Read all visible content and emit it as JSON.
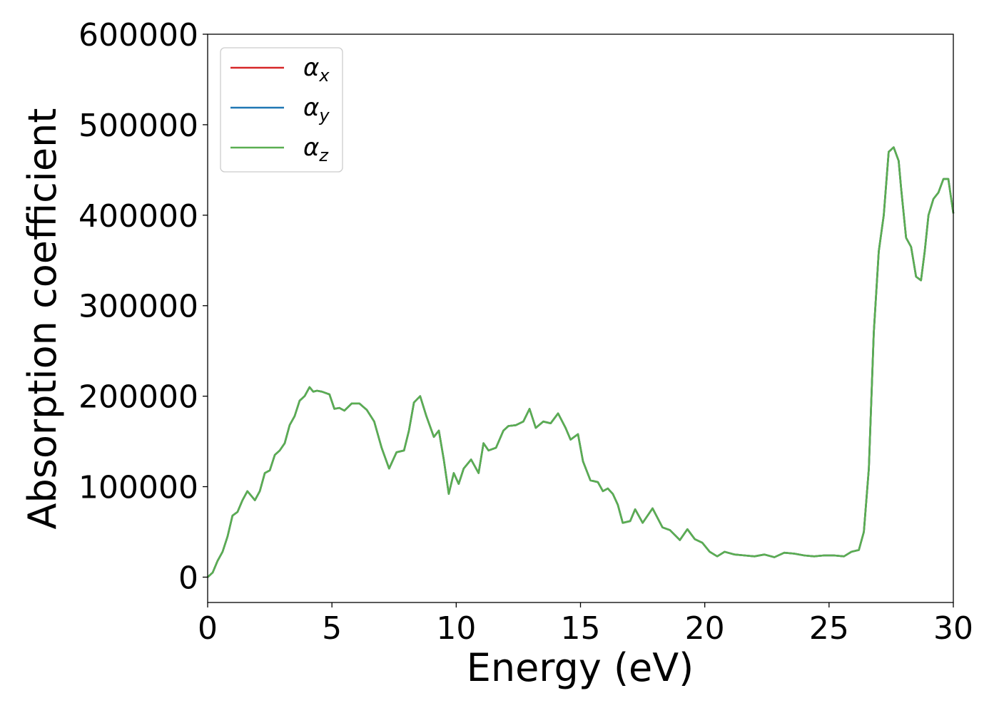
{
  "chart_data": {
    "type": "line",
    "title": "",
    "xlabel": "Energy (eV)",
    "ylabel": "Absorption coefficient",
    "xlim": [
      0,
      30
    ],
    "ylim": [
      -28000,
      600000
    ],
    "xticks": [
      0,
      5,
      10,
      15,
      20,
      25,
      30
    ],
    "yticks": [
      0,
      100000,
      200000,
      300000,
      400000,
      500000,
      600000
    ],
    "grid": false,
    "legend_position": "top-left",
    "series": [
      {
        "name": "α_x",
        "legend_symbol": "α",
        "legend_sub": "x",
        "color": "#d62728",
        "x": [
          0,
          0.2,
          0.4,
          0.6,
          0.8,
          1.0,
          1.2,
          1.4,
          1.6,
          1.75,
          1.9,
          2.1,
          2.3,
          2.5,
          2.7,
          2.9,
          3.1,
          3.3,
          3.5,
          3.7,
          3.9,
          4.1,
          4.25,
          4.4,
          4.6,
          4.9,
          5.1,
          5.3,
          5.5,
          5.8,
          6.1,
          6.4,
          6.7,
          7.0,
          7.3,
          7.6,
          7.9,
          8.1,
          8.3,
          8.55,
          8.8,
          9.1,
          9.3,
          9.5,
          9.7,
          9.9,
          10.1,
          10.3,
          10.6,
          10.9,
          11.1,
          11.3,
          11.6,
          11.9,
          12.1,
          12.4,
          12.7,
          12.95,
          13.2,
          13.5,
          13.8,
          14.1,
          14.4,
          14.6,
          14.9,
          15.1,
          15.4,
          15.7,
          15.9,
          16.1,
          16.3,
          16.5,
          16.7,
          17.0,
          17.2,
          17.5,
          17.9,
          18.3,
          18.6,
          19.0,
          19.3,
          19.6,
          19.9,
          20.2,
          20.5,
          20.8,
          21.2,
          21.6,
          22.0,
          22.4,
          22.8,
          23.2,
          23.6,
          24.0,
          24.4,
          24.8,
          25.2,
          25.6,
          25.9,
          26.2,
          26.4,
          26.6,
          26.8,
          27.0,
          27.2,
          27.4,
          27.6,
          27.8,
          27.9,
          28.1,
          28.3,
          28.5,
          28.7,
          28.85,
          29.0,
          29.2,
          29.4,
          29.6,
          29.8,
          30.0
        ],
        "values": [
          0,
          5000,
          18000,
          28000,
          45000,
          68000,
          72000,
          85000,
          95000,
          90000,
          85000,
          95000,
          115000,
          118000,
          135000,
          140000,
          148000,
          168000,
          178000,
          195000,
          200000,
          210000,
          205000,
          206000,
          205000,
          202000,
          186000,
          187000,
          184000,
          192000,
          192000,
          185000,
          172000,
          143000,
          120000,
          138000,
          140000,
          162000,
          193000,
          200000,
          178000,
          155000,
          162000,
          130000,
          92000,
          115000,
          103000,
          120000,
          130000,
          115000,
          148000,
          140000,
          143000,
          162000,
          167000,
          168000,
          172000,
          186000,
          165000,
          172000,
          170000,
          181000,
          165000,
          152000,
          158000,
          128000,
          107000,
          105000,
          95000,
          98000,
          92000,
          80000,
          60000,
          62000,
          75000,
          60000,
          76000,
          55000,
          52000,
          41000,
          53000,
          42000,
          38000,
          28000,
          23000,
          28000,
          25000,
          24000,
          23000,
          25000,
          22000,
          27000,
          26000,
          24000,
          23000,
          24000,
          24000,
          23000,
          28000,
          30000,
          50000,
          120000,
          270000,
          360000,
          400000,
          470000,
          475000,
          460000,
          430000,
          375000,
          365000,
          332000,
          328000,
          360000,
          400000,
          418000,
          425000,
          440000,
          440000,
          402000
        ]
      },
      {
        "name": "α_y",
        "legend_symbol": "α",
        "legend_sub": "y",
        "color": "#1f77b4",
        "x": [
          0,
          0.2,
          0.4,
          0.6,
          0.8,
          1.0,
          1.2,
          1.4,
          1.6,
          1.75,
          1.9,
          2.1,
          2.3,
          2.5,
          2.7,
          2.9,
          3.1,
          3.3,
          3.5,
          3.7,
          3.9,
          4.1,
          4.25,
          4.4,
          4.6,
          4.9,
          5.1,
          5.3,
          5.5,
          5.8,
          6.1,
          6.4,
          6.7,
          7.0,
          7.3,
          7.6,
          7.9,
          8.1,
          8.3,
          8.55,
          8.8,
          9.1,
          9.3,
          9.5,
          9.7,
          9.9,
          10.1,
          10.3,
          10.6,
          10.9,
          11.1,
          11.3,
          11.6,
          11.9,
          12.1,
          12.4,
          12.7,
          12.95,
          13.2,
          13.5,
          13.8,
          14.1,
          14.4,
          14.6,
          14.9,
          15.1,
          15.4,
          15.7,
          15.9,
          16.1,
          16.3,
          16.5,
          16.7,
          17.0,
          17.2,
          17.5,
          17.9,
          18.3,
          18.6,
          19.0,
          19.3,
          19.6,
          19.9,
          20.2,
          20.5,
          20.8,
          21.2,
          21.6,
          22.0,
          22.4,
          22.8,
          23.2,
          23.6,
          24.0,
          24.4,
          24.8,
          25.2,
          25.6,
          25.9,
          26.2,
          26.4,
          26.6,
          26.8,
          27.0,
          27.2,
          27.4,
          27.6,
          27.8,
          27.9,
          28.1,
          28.3,
          28.5,
          28.7,
          28.85,
          29.0,
          29.2,
          29.4,
          29.6,
          29.8,
          30.0
        ],
        "values": [
          0,
          5000,
          18000,
          28000,
          45000,
          68000,
          72000,
          85000,
          95000,
          90000,
          85000,
          95000,
          115000,
          118000,
          135000,
          140000,
          148000,
          168000,
          178000,
          195000,
          200000,
          210000,
          205000,
          206000,
          205000,
          202000,
          186000,
          187000,
          184000,
          192000,
          192000,
          185000,
          172000,
          143000,
          120000,
          138000,
          140000,
          162000,
          193000,
          200000,
          178000,
          155000,
          162000,
          130000,
          92000,
          115000,
          103000,
          120000,
          130000,
          115000,
          148000,
          140000,
          143000,
          162000,
          167000,
          168000,
          172000,
          186000,
          165000,
          172000,
          170000,
          181000,
          165000,
          152000,
          158000,
          128000,
          107000,
          105000,
          95000,
          98000,
          92000,
          80000,
          60000,
          62000,
          75000,
          60000,
          76000,
          55000,
          52000,
          41000,
          53000,
          42000,
          38000,
          28000,
          23000,
          28000,
          25000,
          24000,
          23000,
          25000,
          22000,
          27000,
          26000,
          24000,
          23000,
          24000,
          24000,
          23000,
          28000,
          30000,
          50000,
          120000,
          270000,
          360000,
          400000,
          470000,
          475000,
          460000,
          430000,
          375000,
          365000,
          332000,
          328000,
          360000,
          400000,
          418000,
          425000,
          440000,
          440000,
          402000
        ]
      },
      {
        "name": "α_z",
        "legend_symbol": "α",
        "legend_sub": "z",
        "color": "#5aae51",
        "x": [
          0,
          0.2,
          0.4,
          0.6,
          0.8,
          1.0,
          1.2,
          1.4,
          1.6,
          1.75,
          1.9,
          2.1,
          2.3,
          2.5,
          2.7,
          2.9,
          3.1,
          3.3,
          3.5,
          3.7,
          3.9,
          4.1,
          4.25,
          4.4,
          4.6,
          4.9,
          5.1,
          5.3,
          5.5,
          5.8,
          6.1,
          6.4,
          6.7,
          7.0,
          7.3,
          7.6,
          7.9,
          8.1,
          8.3,
          8.55,
          8.8,
          9.1,
          9.3,
          9.5,
          9.7,
          9.9,
          10.1,
          10.3,
          10.6,
          10.9,
          11.1,
          11.3,
          11.6,
          11.9,
          12.1,
          12.4,
          12.7,
          12.95,
          13.2,
          13.5,
          13.8,
          14.1,
          14.4,
          14.6,
          14.9,
          15.1,
          15.4,
          15.7,
          15.9,
          16.1,
          16.3,
          16.5,
          16.7,
          17.0,
          17.2,
          17.5,
          17.9,
          18.3,
          18.6,
          19.0,
          19.3,
          19.6,
          19.9,
          20.2,
          20.5,
          20.8,
          21.2,
          21.6,
          22.0,
          22.4,
          22.8,
          23.2,
          23.6,
          24.0,
          24.4,
          24.8,
          25.2,
          25.6,
          25.9,
          26.2,
          26.4,
          26.6,
          26.8,
          27.0,
          27.2,
          27.4,
          27.6,
          27.8,
          27.9,
          28.1,
          28.3,
          28.5,
          28.7,
          28.85,
          29.0,
          29.2,
          29.4,
          29.6,
          29.8,
          30.0
        ],
        "values": [
          0,
          5000,
          18000,
          28000,
          45000,
          68000,
          72000,
          85000,
          95000,
          90000,
          85000,
          95000,
          115000,
          118000,
          135000,
          140000,
          148000,
          168000,
          178000,
          195000,
          200000,
          210000,
          205000,
          206000,
          205000,
          202000,
          186000,
          187000,
          184000,
          192000,
          192000,
          185000,
          172000,
          143000,
          120000,
          138000,
          140000,
          162000,
          193000,
          200000,
          178000,
          155000,
          162000,
          130000,
          92000,
          115000,
          103000,
          120000,
          130000,
          115000,
          148000,
          140000,
          143000,
          162000,
          167000,
          168000,
          172000,
          186000,
          165000,
          172000,
          170000,
          181000,
          165000,
          152000,
          158000,
          128000,
          107000,
          105000,
          95000,
          98000,
          92000,
          80000,
          60000,
          62000,
          75000,
          60000,
          76000,
          55000,
          52000,
          41000,
          53000,
          42000,
          38000,
          28000,
          23000,
          28000,
          25000,
          24000,
          23000,
          25000,
          22000,
          27000,
          26000,
          24000,
          23000,
          24000,
          24000,
          23000,
          28000,
          30000,
          50000,
          120000,
          270000,
          360000,
          400000,
          470000,
          475000,
          460000,
          430000,
          375000,
          365000,
          332000,
          328000,
          360000,
          400000,
          418000,
          425000,
          440000,
          440000,
          402000
        ]
      }
    ]
  }
}
